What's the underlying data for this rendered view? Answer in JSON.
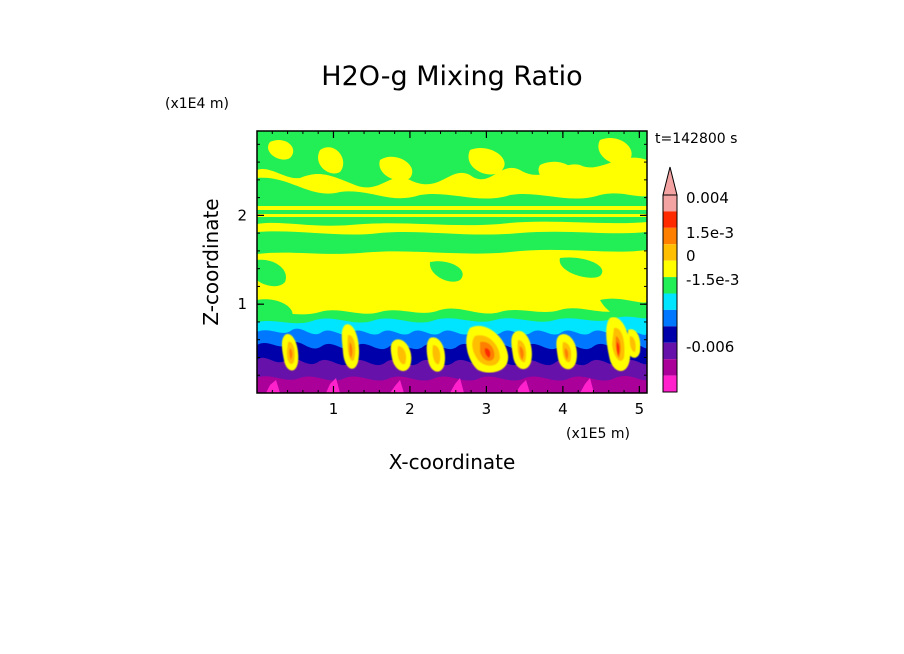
{
  "chart_data": {
    "type": "heatmap",
    "title": "H2O-g Mixing Ratio",
    "xlabel": "X-coordinate",
    "ylabel": "Z-coordinate",
    "x_unit": "(x1E5 m)",
    "y_unit": "(x1E4 m)",
    "time_label": "t=142800 s",
    "xlim": [
      0,
      5.1
    ],
    "ylim": [
      0,
      2.95
    ],
    "x_ticks": [
      "1",
      "2",
      "3",
      "4",
      "5"
    ],
    "x_tick_values": [
      1,
      2,
      3,
      4,
      5
    ],
    "y_ticks": [
      "1",
      "2"
    ],
    "y_tick_values": [
      1,
      2
    ],
    "colorbar": {
      "levels": [
        "0.004",
        "1.5e-3",
        "0",
        "-1.5e-3",
        "-0.006"
      ],
      "colors_top_to_bottom": [
        "#f4a3a3",
        "#ff2a00",
        "#ff7f00",
        "#ffbf00",
        "#ffff00",
        "#22ee55",
        "#00e5ff",
        "#0077ff",
        "#0000aa",
        "#6611aa",
        "#aa0099",
        "#ff22cc"
      ]
    },
    "description_bands": [
      {
        "z_range": [
          2.0,
          2.95
        ],
        "dominant": "#22ee55",
        "secondary": "#ffff00"
      },
      {
        "z_range": [
          1.0,
          2.0
        ],
        "dominant": "#ffff00",
        "secondary": "#22ee55"
      },
      {
        "z_range": [
          0.6,
          1.0
        ],
        "dominant": "#00e5ff",
        "secondary": "#22ee55"
      },
      {
        "z_range": [
          0.0,
          0.6
        ],
        "dominant": "#6611aa",
        "secondary": "#0000aa"
      }
    ]
  }
}
